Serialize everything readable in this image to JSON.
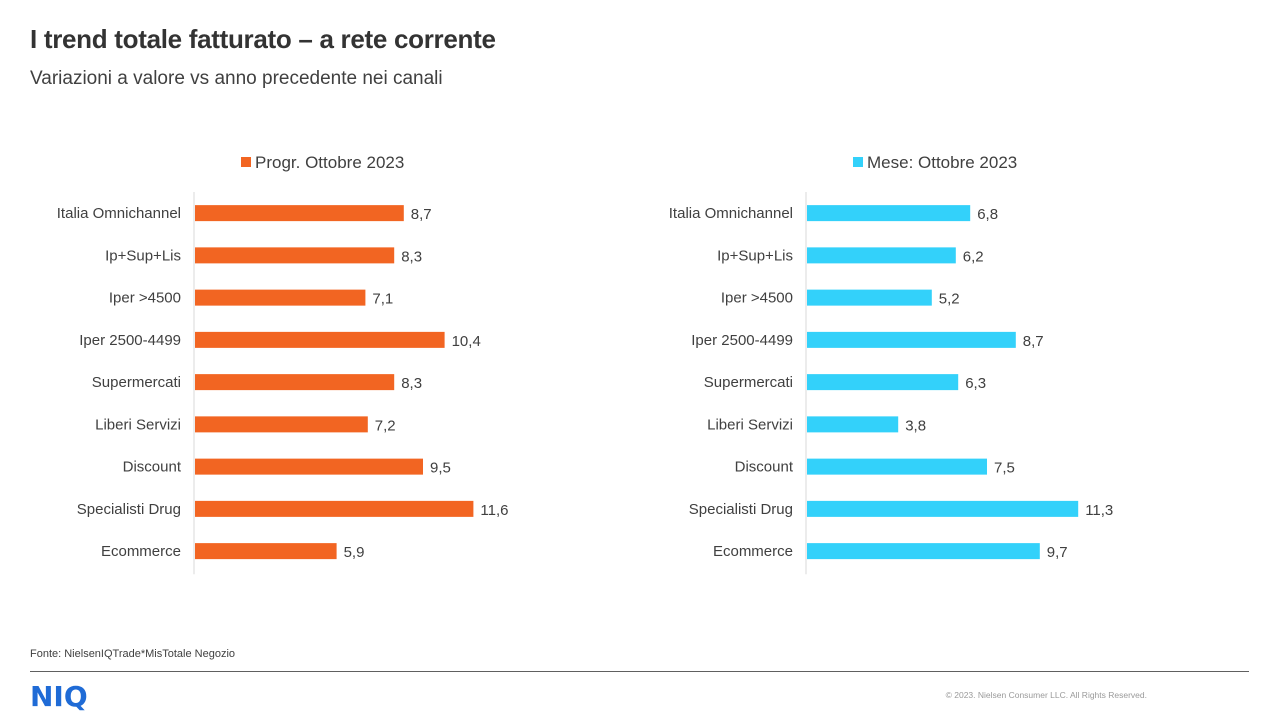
{
  "header": {
    "title": "I trend totale fatturato – a rete corrente",
    "subtitle": "Variazioni a valore vs anno precedente nei canali"
  },
  "footer": {
    "source": "Fonte: NielsenIQTrade*MisTotale Negozio",
    "logo_text": "NIQ",
    "copyright": "© 2023. Nielsen Consumer LLC. All Rights Reserved."
  },
  "colors": {
    "series_left": "#f26522",
    "series_right": "#33d1fa",
    "brand": "#1f6bd6"
  },
  "chart_data": [
    {
      "type": "bar",
      "orientation": "horizontal",
      "legend_position": "top",
      "categories": [
        "Italia Omnichannel",
        "Ip+Sup+Lis",
        "Iper >4500",
        "Iper 2500-4499",
        "Supermercati",
        "Liberi Servizi",
        "Discount",
        "Specialisti Drug",
        "Ecommerce"
      ],
      "series": [
        {
          "name": "Progr. Ottobre 2023",
          "values": [
            8.7,
            8.3,
            7.1,
            10.4,
            8.3,
            7.2,
            9.5,
            11.6,
            5.9
          ],
          "labels": [
            "8,7",
            "8,3",
            "7,1",
            "10,4",
            "8,3",
            "7,2",
            "9,5",
            "11,6",
            "5,9"
          ]
        }
      ],
      "xlim": [
        0,
        14
      ],
      "grid": false
    },
    {
      "type": "bar",
      "orientation": "horizontal",
      "legend_position": "top",
      "categories": [
        "Italia Omnichannel",
        "Ip+Sup+Lis",
        "Iper >4500",
        "Iper 2500-4499",
        "Supermercati",
        "Liberi Servizi",
        "Discount",
        "Specialisti Drug",
        "Ecommerce"
      ],
      "series": [
        {
          "name": "Mese: Ottobre 2023",
          "values": [
            6.8,
            6.2,
            5.2,
            8.7,
            6.3,
            3.8,
            7.5,
            11.3,
            9.7
          ],
          "labels": [
            "6,8",
            "6,2",
            "5,2",
            "8,7",
            "6,3",
            "3,8",
            "7,5",
            "11,3",
            "9,7"
          ]
        }
      ],
      "xlim": [
        0,
        14
      ],
      "grid": false
    }
  ]
}
